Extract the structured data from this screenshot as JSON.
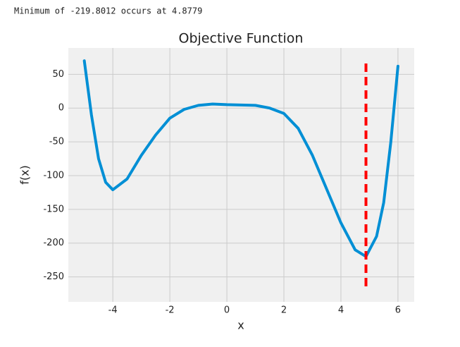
{
  "output_text": "Minimum of -219.8012 occurs at 4.8779",
  "chart_data": {
    "type": "line",
    "title": "Objective Function",
    "x_label": "x",
    "y_label": "f(x)",
    "x": [
      -5,
      -4.75,
      -4.5,
      -4.25,
      -4,
      -3.5,
      -3,
      -2.5,
      -2,
      -1.5,
      -1,
      -0.5,
      0,
      0.5,
      1,
      1.5,
      2,
      2.5,
      3,
      3.5,
      4,
      4.5,
      4.8779,
      5.25,
      5.5,
      5.75,
      6
    ],
    "series": [
      {
        "name": "f(x)",
        "color": "#008fd5",
        "values": [
          70,
          -10,
          -75,
          -110,
          -121,
          -105,
          -70,
          -40,
          -15,
          -2,
          4,
          6,
          5,
          4.5,
          4,
          0,
          -8,
          -30,
          -70,
          -120,
          -170,
          -210,
          -219.8012,
          -190,
          -140,
          -50,
          62
        ]
      }
    ],
    "vline": {
      "x": 4.8779,
      "color": "#ff0000"
    },
    "xlim": [
      -5.56,
      6.57
    ],
    "xticks": [
      -4,
      -2,
      0,
      2,
      4,
      6
    ],
    "ylim": [
      -287,
      89
    ],
    "yticks": [
      50,
      0,
      -50,
      -100,
      -150,
      -200,
      -250
    ],
    "grid": true
  }
}
